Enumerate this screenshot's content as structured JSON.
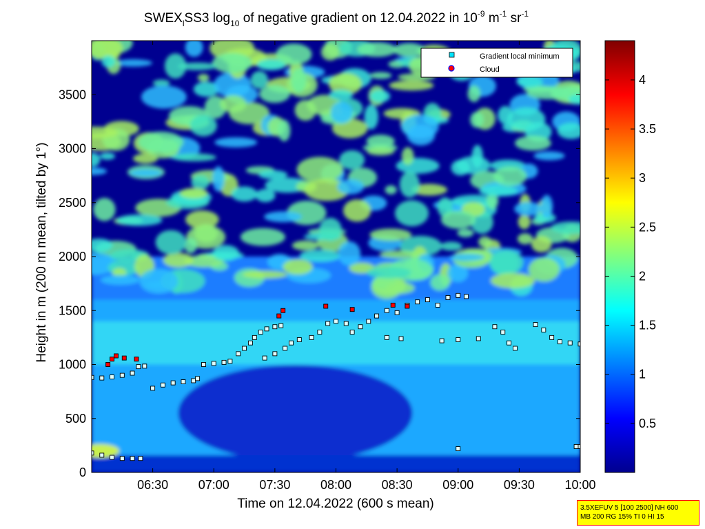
{
  "chart_data": {
    "type": "heatmap",
    "title_parts": {
      "a": "SWEX",
      "a_sub": "l",
      "b": "SS3 log",
      "b_sub": "10",
      "c": " of negative gradient on 12.04.2022 in 10",
      "c_sup": "-9",
      "d": " m",
      "d_sup": "-1",
      "e": " sr",
      "e_sup": "-1"
    },
    "xlabel": "Time on 12.04.2022 (600 s mean)",
    "ylabel": "Height in m (200 m mean, tilted by 1°)",
    "xlim": [
      "06:00",
      "10:00"
    ],
    "ylim": [
      0,
      4000
    ],
    "x_ticks": [
      "06:30",
      "07:00",
      "07:30",
      "08:00",
      "08:30",
      "09:00",
      "09:30",
      "10:00"
    ],
    "y_ticks": [
      0,
      500,
      1000,
      1500,
      2000,
      2500,
      3000,
      3500
    ],
    "colorbar": {
      "range": [
        0,
        4.4
      ],
      "ticks": [
        "0.5",
        "1",
        "1.5",
        "2",
        "2.5",
        "3",
        "3.5",
        "4"
      ],
      "colormap": "jet"
    },
    "legend": {
      "placement": "top-right",
      "entries": [
        "Gradient local minimum",
        "Cloud"
      ],
      "colors": [
        "#00e5ff",
        "#ff0000"
      ]
    },
    "series": [
      {
        "name": "Gradient local minimum",
        "points": [
          [
            "06:00",
            880
          ],
          [
            "06:05",
            875
          ],
          [
            "06:10",
            885
          ],
          [
            "06:15",
            900
          ],
          [
            "06:20",
            920
          ],
          [
            "06:23",
            980
          ],
          [
            "06:26",
            985
          ],
          [
            "06:30",
            780
          ],
          [
            "06:35",
            810
          ],
          [
            "06:40",
            830
          ],
          [
            "06:45",
            840
          ],
          [
            "06:50",
            850
          ],
          [
            "06:52",
            870
          ],
          [
            "06:55",
            1000
          ],
          [
            "07:00",
            1010
          ],
          [
            "07:05",
            1020
          ],
          [
            "07:08",
            1030
          ],
          [
            "07:12",
            1100
          ],
          [
            "07:15",
            1150
          ],
          [
            "07:18",
            1200
          ],
          [
            "07:20",
            1250
          ],
          [
            "07:23",
            1300
          ],
          [
            "07:26",
            1330
          ],
          [
            "07:30",
            1350
          ],
          [
            "07:33",
            1360
          ],
          [
            "07:25",
            1060
          ],
          [
            "07:30",
            1100
          ],
          [
            "07:35",
            1150
          ],
          [
            "07:38",
            1200
          ],
          [
            "07:42",
            1230
          ],
          [
            "07:48",
            1250
          ],
          [
            "07:52",
            1300
          ],
          [
            "07:56",
            1380
          ],
          [
            "08:00",
            1400
          ],
          [
            "08:05",
            1380
          ],
          [
            "08:08",
            1300
          ],
          [
            "08:12",
            1350
          ],
          [
            "08:16",
            1400
          ],
          [
            "08:20",
            1450
          ],
          [
            "08:25",
            1500
          ],
          [
            "08:30",
            1480
          ],
          [
            "08:35",
            1550
          ],
          [
            "08:40",
            1580
          ],
          [
            "08:45",
            1600
          ],
          [
            "08:50",
            1550
          ],
          [
            "08:55",
            1620
          ],
          [
            "09:00",
            1640
          ],
          [
            "09:04",
            1630
          ],
          [
            "08:25",
            1250
          ],
          [
            "08:32",
            1240
          ],
          [
            "08:52",
            1220
          ],
          [
            "09:00",
            1230
          ],
          [
            "09:10",
            1240
          ],
          [
            "09:18",
            1350
          ],
          [
            "09:22",
            1300
          ],
          [
            "09:25",
            1200
          ],
          [
            "09:28",
            1150
          ],
          [
            "09:38",
            1370
          ],
          [
            "09:42",
            1320
          ],
          [
            "09:46",
            1250
          ],
          [
            "09:50",
            1210
          ],
          [
            "09:55",
            1200
          ],
          [
            "10:00",
            1190
          ],
          [
            "06:00",
            180
          ],
          [
            "06:05",
            160
          ],
          [
            "06:10",
            140
          ],
          [
            "06:15",
            130
          ],
          [
            "06:20",
            130
          ],
          [
            "06:24",
            130
          ],
          [
            "09:00",
            220
          ],
          [
            "09:58",
            240
          ],
          [
            "10:00",
            240
          ]
        ]
      },
      {
        "name": "Cloud",
        "points": [
          [
            "06:08",
            1000
          ],
          [
            "06:10",
            1050
          ],
          [
            "06:12",
            1080
          ],
          [
            "06:16",
            1060
          ],
          [
            "06:22",
            1050
          ],
          [
            "07:32",
            1450
          ],
          [
            "07:34",
            1500
          ],
          [
            "07:55",
            1540
          ],
          [
            "08:08",
            1510
          ],
          [
            "08:28",
            1550
          ],
          [
            "08:35",
            1540
          ]
        ]
      }
    ]
  },
  "info_box": {
    "line1": "3.5XEFUV 5 [100 2500] NH 600",
    "line2": "MB 200 RG 15% TI 0 HI 15"
  }
}
